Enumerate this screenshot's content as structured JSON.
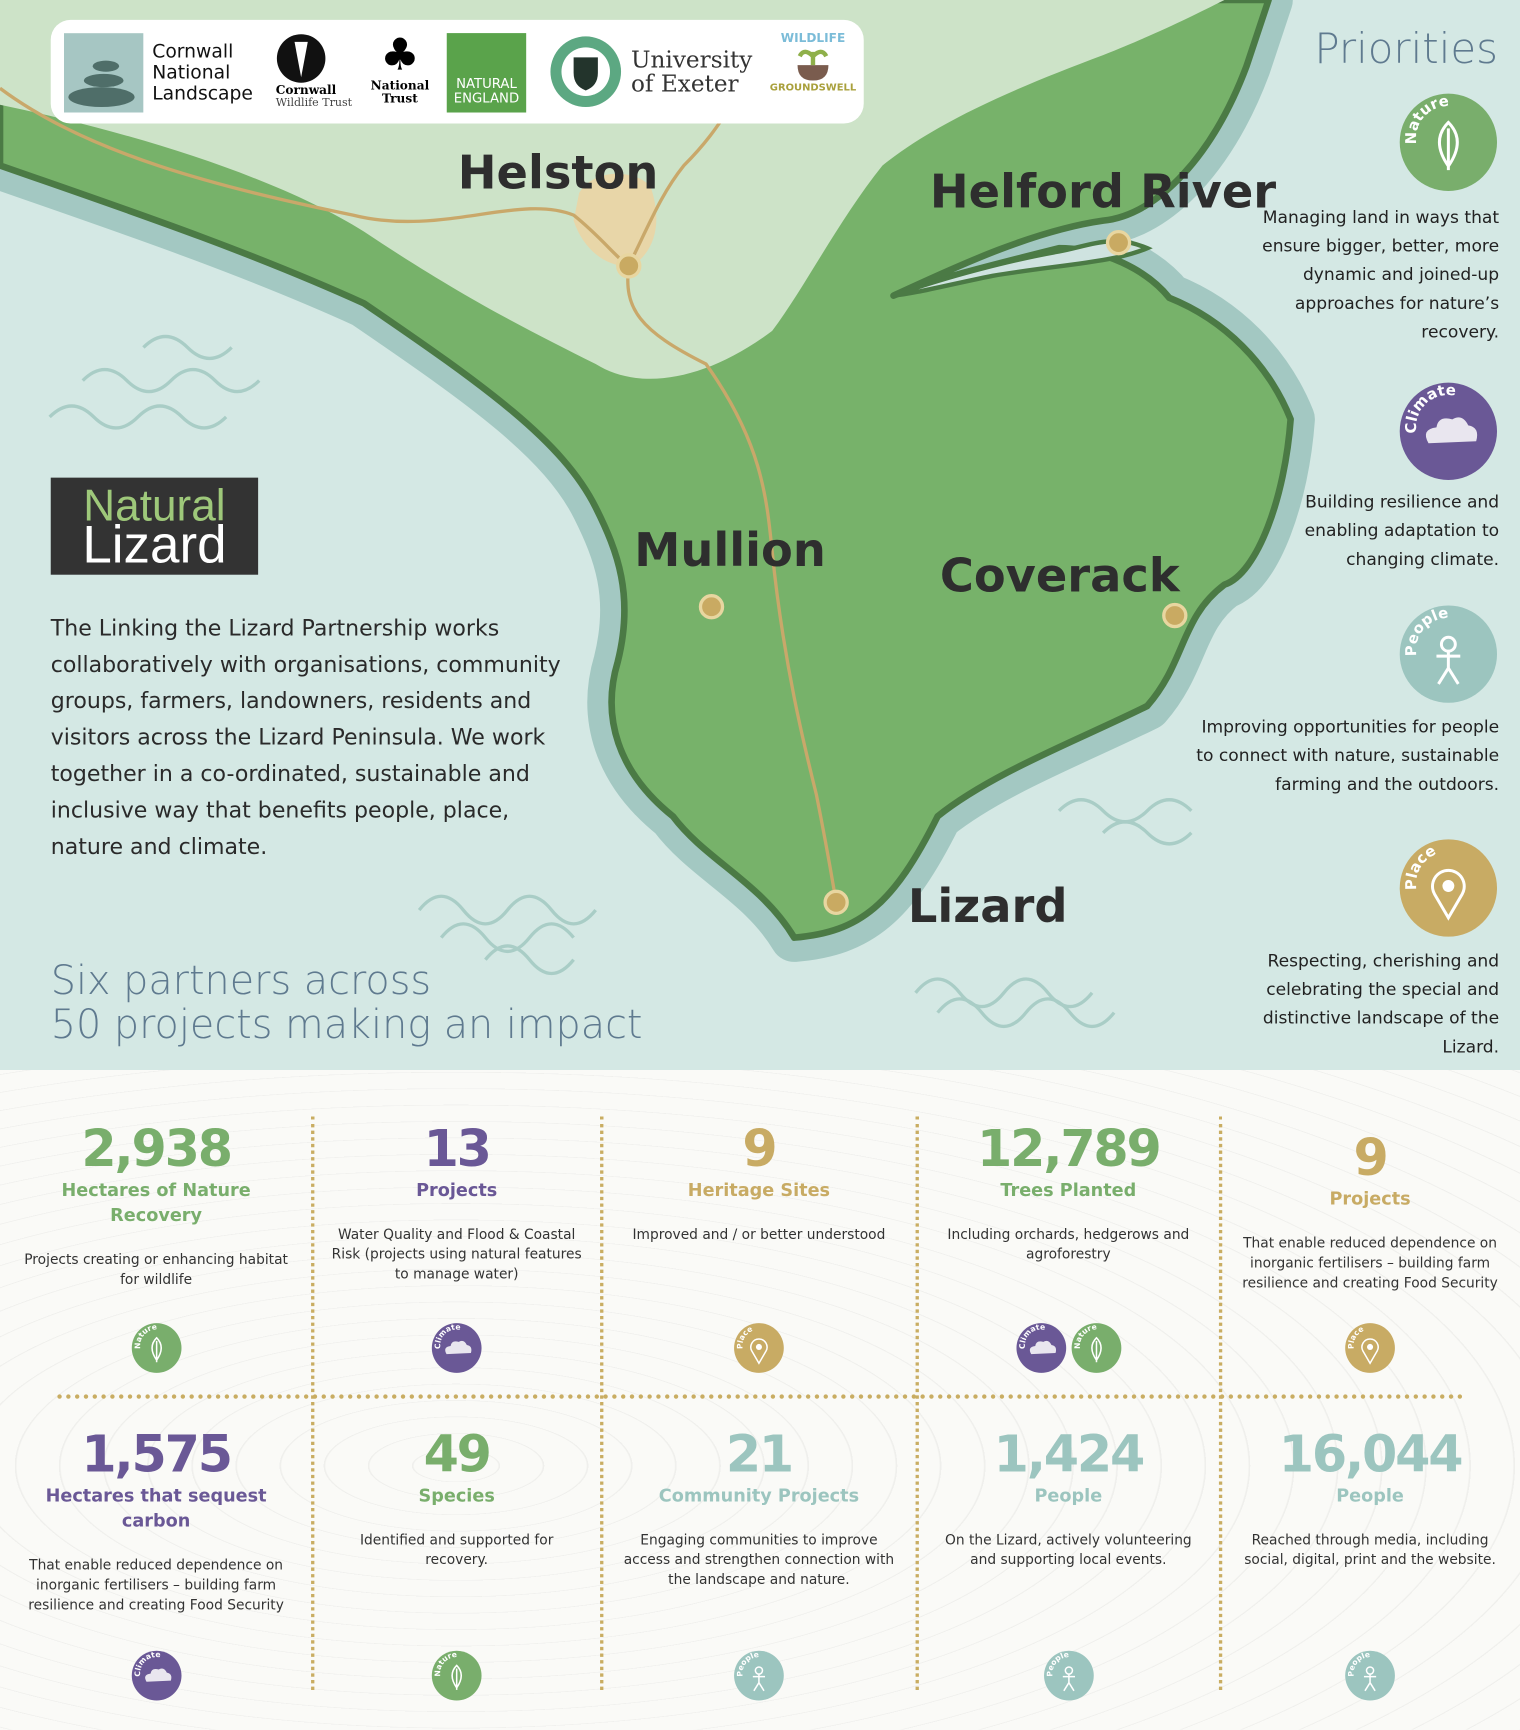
{
  "logos": {
    "cornwall_national_landscape": "Cornwall National Landscape",
    "cornwall_wildlife_trust": [
      "Cornwall",
      "Wildlife Trust"
    ],
    "national_trust": [
      "National",
      "Trust"
    ],
    "natural_england": [
      "NATURAL",
      "ENGLAND"
    ],
    "university_of_exeter": [
      "University",
      "of Exeter"
    ],
    "wildlife_groundswell": [
      "WILDLIFE",
      "GROUNDSWELL"
    ]
  },
  "map": {
    "towns": {
      "helston": "Helston",
      "helford": "Helford River",
      "mullion": "Mullion",
      "coverack": "Coverack",
      "lizard": "Lizard"
    },
    "colors": {
      "sea": "#d4e8e4",
      "land_north": "#cde3c8",
      "land": "#77b26a",
      "coast": "#4b7a45",
      "halo": "#a3c8c2",
      "road": "#c9a86a"
    }
  },
  "icon_labels": {
    "nature": "Nature",
    "climate": "Climate",
    "people": "People",
    "place": "Place"
  },
  "icon_colors": {
    "nature": "#79ae6c",
    "climate": "#6a5896",
    "people": "#9cc5bf",
    "place": "#c8ab64"
  },
  "priorities": {
    "title": "Priorities",
    "items": [
      {
        "icon": "nature",
        "text": "Managing land in ways that ensure bigger, better, more dynamic and joined-up approaches for nature’s recovery."
      },
      {
        "icon": "climate",
        "text": "Building resilience and enabling adaptation to changing climate."
      },
      {
        "icon": "people",
        "text": "Improving opportunities for people to connect with nature, sustainable farming and the outdoors."
      },
      {
        "icon": "place",
        "text": "Respecting, cherishing and celebrating the special and distinctive landscape of the Lizard."
      }
    ]
  },
  "natural_lizard_logo": [
    "Natural",
    "Lizard"
  ],
  "intro": "The Linking the Lizard Partnership works collaboratively with organisations, community groups, farmers, landowners, residents and visitors across the Lizard Peninsula. We work together in a co-ordinated, sustainable and inclusive way that benefits people, place, nature and climate.",
  "headline": [
    "Six partners across",
    "50 projects making an impact"
  ],
  "stats": [
    {
      "number": "2,938",
      "label": "Hectares of Nature Recovery",
      "desc": "Projects creating or enhancing habitat for wildlife",
      "color": "#79ae6c",
      "icons": [
        "nature"
      ]
    },
    {
      "number": "13",
      "label": "Projects",
      "desc": "Water Quality and Flood & Coastal Risk (projects using natural features to manage water)",
      "color": "#6a5896",
      "icons": [
        "climate"
      ]
    },
    {
      "number": "9",
      "label": "Heritage Sites",
      "desc": "Improved and / or better understood",
      "color": "#c8ab64",
      "icons": [
        "place"
      ]
    },
    {
      "number": "12,789",
      "label": "Trees Planted",
      "desc": "Including orchards, hedgerows and agroforestry",
      "color": "#79ae6c",
      "icons": [
        "climate",
        "nature"
      ]
    },
    {
      "number": "9",
      "label": "Projects",
      "desc": "That enable reduced dependence on inorganic fertilisers – building farm resilience and creating Food Security",
      "color": "#c8ab64",
      "icons": [
        "place"
      ]
    },
    {
      "number": "1,575",
      "label": "Hectares that sequest carbon",
      "desc": "That enable reduced dependence on inorganic fertilisers – building farm resilience and creating Food Security",
      "color": "#6a5896",
      "icons": [
        "climate"
      ]
    },
    {
      "number": "49",
      "label": "Species",
      "desc": "Identified and supported for recovery.",
      "color": "#79ae6c",
      "icons": [
        "nature"
      ]
    },
    {
      "number": "21",
      "label": "Community Projects",
      "desc": "Engaging communities to improve access and strengthen connection with the landscape and nature.",
      "color": "#9cc5bf",
      "icons": [
        "people"
      ]
    },
    {
      "number": "1,424",
      "label": "People",
      "desc": "On the Lizard, actively volunteering and supporting local events.",
      "color": "#9cc5bf",
      "icons": [
        "people"
      ]
    },
    {
      "number": "16,044",
      "label": "People",
      "desc": "Reached through media, including social, digital, print and the website.",
      "color": "#9cc5bf",
      "icons": [
        "people"
      ]
    }
  ]
}
